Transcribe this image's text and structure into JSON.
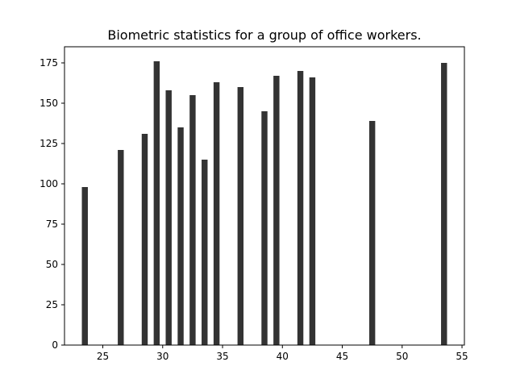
{
  "chart_data": {
    "type": "bar",
    "title": "Biometric statistics for a group of office workers.",
    "xlabel": "",
    "ylabel": "",
    "x": [
      23.5,
      26.5,
      28.5,
      29.5,
      30.5,
      31.5,
      32.5,
      33.5,
      34.5,
      36.5,
      38.5,
      39.5,
      41.5,
      42.5,
      47.5,
      53.5
    ],
    "values": [
      98,
      121,
      131,
      176,
      158,
      135,
      155,
      115,
      163,
      160,
      145,
      167,
      170,
      166,
      139,
      175
    ],
    "xlim": [
      21.8,
      55.2
    ],
    "ylim": [
      0,
      185
    ],
    "x_ticks": [
      "25",
      "30",
      "35",
      "40",
      "45",
      "50",
      "55"
    ],
    "y_ticks": [
      "0",
      "25",
      "50",
      "75",
      "100",
      "125",
      "150",
      "175"
    ],
    "bar_color": "#333333",
    "grid": false,
    "legend": "none"
  }
}
